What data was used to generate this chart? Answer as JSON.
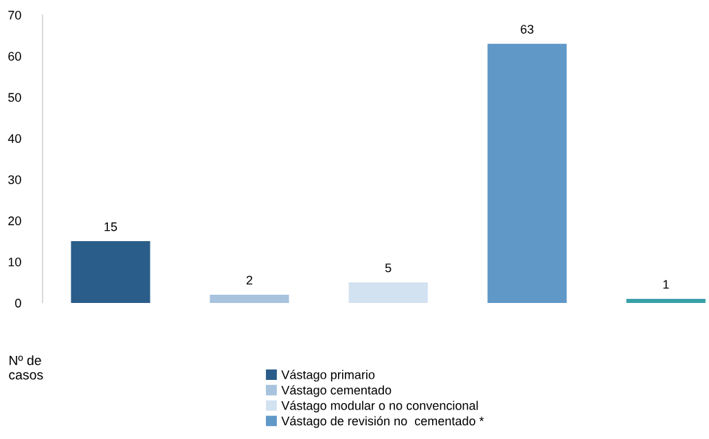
{
  "chart_data": {
    "type": "bar",
    "ylabel": "Nº de\ncasos",
    "categories": [
      null,
      null,
      null,
      null,
      null
    ],
    "series": [
      {
        "name": "Vástago primario",
        "color": "#2a5d8a",
        "values": [
          15,
          null,
          null,
          null,
          null
        ]
      },
      {
        "name": "Vástago cementado",
        "color": "#a7c3de",
        "values": [
          null,
          2,
          null,
          null,
          null
        ]
      },
      {
        "name": "Vástago modular o no convencional",
        "color": "#d3e2f1",
        "values": [
          null,
          null,
          5,
          null,
          null
        ]
      },
      {
        "name": "Vástago de revisión no  cementado *",
        "color": "#6098c8",
        "values": [
          null,
          null,
          null,
          63,
          null
        ]
      },
      {
        "color": "#3aa0a8",
        "values": [
          null,
          null,
          null,
          null,
          1
        ]
      }
    ],
    "ylim": [
      0,
      70
    ],
    "yticks": [
      0,
      10,
      20,
      30,
      40,
      50,
      60,
      70
    ],
    "stacked": true,
    "data_labels": true,
    "grid": false,
    "legend": "bottom"
  }
}
